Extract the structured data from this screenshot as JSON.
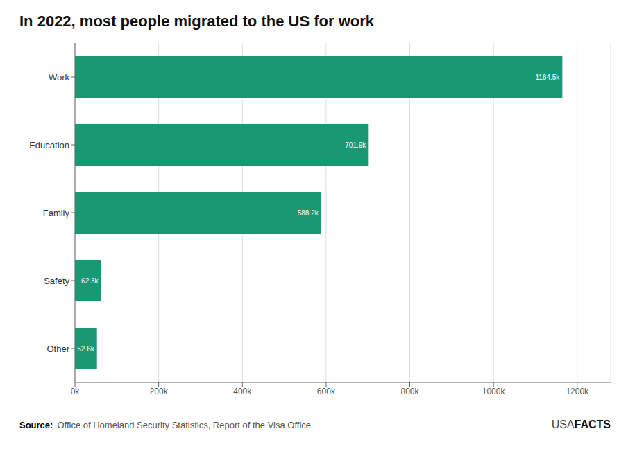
{
  "chart_data": {
    "type": "bar",
    "title": "In 2022, most people migrated to the US for work",
    "orientation": "horizontal",
    "categories": [
      "Work",
      "Education",
      "Family",
      "Safety",
      "Other"
    ],
    "values": [
      1164.5,
      701.9,
      588.2,
      62.3,
      52.6
    ],
    "value_labels": [
      "1164.5k",
      "701.9k",
      "588.2k",
      "62.3k",
      "52.6k"
    ],
    "data_labels": true,
    "color": "#1a9874",
    "xlim": [
      0,
      1280
    ],
    "xticks": [
      {
        "value": 0,
        "label": "0k"
      },
      {
        "value": 200,
        "label": "200k"
      },
      {
        "value": 400,
        "label": "400k"
      },
      {
        "value": 600,
        "label": "600k"
      },
      {
        "value": 800,
        "label": "800k"
      },
      {
        "value": 1000,
        "label": "1000k"
      },
      {
        "value": 1200,
        "label": "1200k"
      }
    ],
    "grid": true,
    "annotations": [
      "Source:",
      "Office of Homeland Security Statistics, Report of the Visa Office",
      "USA",
      "FACTS"
    ]
  }
}
